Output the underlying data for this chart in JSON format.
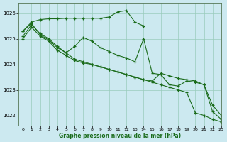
{
  "background_color": "#cce9f0",
  "grid_color": "#99ccbb",
  "line_color": "#1a6b1a",
  "xlabel": "Graphe pression niveau de la mer (hPa)",
  "ylim": [
    1021.6,
    1026.4
  ],
  "xlim": [
    -0.5,
    23
  ],
  "yticks": [
    1022,
    1023,
    1024,
    1025,
    1026
  ],
  "xticks": [
    0,
    1,
    2,
    3,
    4,
    5,
    6,
    7,
    8,
    9,
    10,
    11,
    12,
    13,
    14,
    15,
    16,
    17,
    18,
    19,
    20,
    21,
    22,
    23
  ],
  "s1": [
    1025.3,
    1025.65,
    1025.75,
    1025.78,
    1025.78,
    1025.8,
    1025.8,
    1025.8,
    1025.8,
    1025.8,
    1025.85,
    1026.05,
    1026.1,
    1025.65,
    1025.5,
    null,
    null,
    null,
    null,
    null,
    null,
    null,
    null,
    null
  ],
  "s2": [
    1025.1,
    1025.55,
    1025.2,
    1025.0,
    1024.7,
    1024.45,
    1024.7,
    1025.05,
    1024.9,
    1024.65,
    1024.5,
    1024.35,
    1024.25,
    1024.1,
    1025.0,
    1023.65,
    1023.6,
    1023.2,
    1023.15,
    1023.35,
    1023.3,
    1023.2,
    1022.15,
    1021.85
  ],
  "s3": [
    1025.0,
    1025.45,
    1025.1,
    1024.9,
    1024.55,
    1024.35,
    1024.15,
    1024.05,
    1024.0,
    1023.9,
    1023.8,
    1023.7,
    1023.6,
    1023.5,
    1023.4,
    1023.35,
    1023.65,
    1023.55,
    1023.45,
    1023.4,
    1023.35,
    1023.2,
    1022.4,
    1022.0
  ],
  "s4": [
    1025.3,
    1025.6,
    1025.15,
    1024.95,
    1024.65,
    1024.45,
    1024.2,
    1024.1,
    1024.0,
    1023.9,
    1023.8,
    1023.7,
    1023.6,
    1023.5,
    1023.4,
    1023.3,
    1023.2,
    1023.1,
    1023.0,
    1022.9,
    1022.1,
    1022.0,
    1021.85,
    1021.75
  ]
}
